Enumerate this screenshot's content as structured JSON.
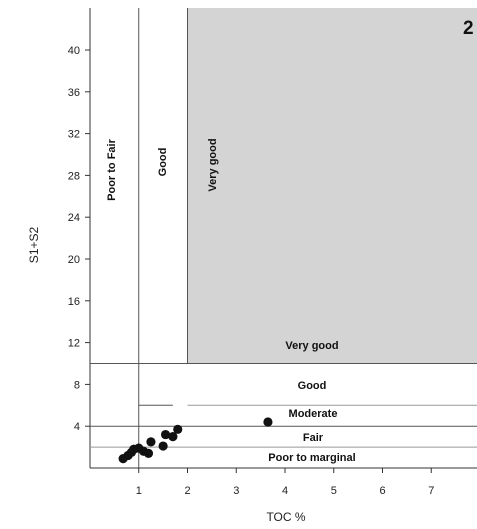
{
  "chart_data": {
    "type": "scatter",
    "panel_label": "2",
    "xlabel": "TOC %",
    "ylabel": "S1+S2",
    "xlim": [
      0,
      8
    ],
    "ylim": [
      0,
      44
    ],
    "x_ticks": [
      "1",
      "2",
      "3",
      "4",
      "5",
      "6",
      "7"
    ],
    "y_ticks": [
      "4",
      "8",
      "12",
      "16",
      "20",
      "24",
      "28",
      "32",
      "36",
      "40"
    ],
    "colors": {
      "shaded_zone": "#d4d4d4",
      "points": "#111111",
      "lines": "#555555"
    },
    "vertical_zone_labels": [
      "Poor to Fair",
      "Good",
      "Very good"
    ],
    "horizontal_zone_labels": [
      "Very good",
      "Good",
      "Moderate",
      "Fair",
      "Poor to marginal"
    ],
    "points": [
      {
        "x": 0.68,
        "y": 0.9
      },
      {
        "x": 0.78,
        "y": 1.2
      },
      {
        "x": 0.85,
        "y": 1.5
      },
      {
        "x": 0.9,
        "y": 1.8
      },
      {
        "x": 1.0,
        "y": 1.9
      },
      {
        "x": 1.1,
        "y": 1.6
      },
      {
        "x": 1.2,
        "y": 1.4
      },
      {
        "x": 1.25,
        "y": 2.5
      },
      {
        "x": 1.5,
        "y": 2.1
      },
      {
        "x": 1.55,
        "y": 3.2
      },
      {
        "x": 1.7,
        "y": 3.0
      },
      {
        "x": 1.8,
        "y": 3.7
      },
      {
        "x": 3.65,
        "y": 4.4
      }
    ]
  }
}
